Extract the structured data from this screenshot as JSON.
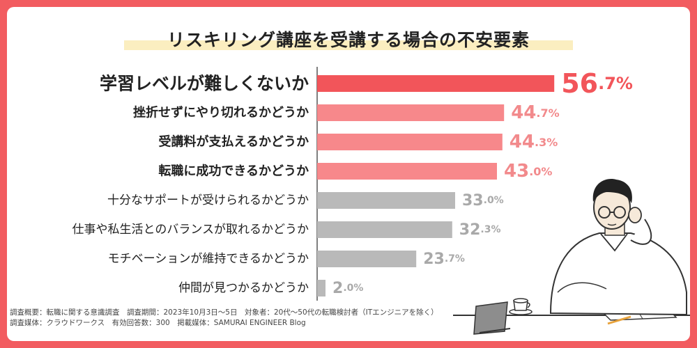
{
  "chart_data": {
    "type": "bar",
    "orientation": "horizontal",
    "title": "リスキリング講座を受講する場合の不安要素",
    "unit": "%",
    "xlim": [
      0,
      60
    ],
    "categories": [
      "学習レベルが難しくないか",
      "挫折せずにやり切れるかどうか",
      "受講料が支払えるかどうか",
      "転職に成功できるかどうか",
      "十分なサポートが受けられるかどうか",
      "仕事や私生活とのバランスが取れるかどうか",
      "モチベーションが維持できるかどうか",
      "仲間が見つかるかどうか"
    ],
    "values": [
      56.7,
      44.7,
      44.3,
      43.0,
      33.0,
      32.3,
      23.7,
      2.0
    ],
    "value_labels": [
      {
        "int": "56",
        "dec": ".7%"
      },
      {
        "int": "44",
        "dec": ".7%"
      },
      {
        "int": "44",
        "dec": ".3%"
      },
      {
        "int": "43",
        "dec": ".0%"
      },
      {
        "int": "33",
        "dec": ".0%"
      },
      {
        "int": "32",
        "dec": ".3%"
      },
      {
        "int": "23",
        "dec": ".7%"
      },
      {
        "int": "2",
        "dec": ".0%"
      }
    ],
    "tiers": [
      "top",
      "high",
      "high",
      "high",
      "low",
      "low",
      "low",
      "low"
    ],
    "colors": {
      "top": "#f2555a",
      "high": "#f7888b",
      "low": "#b9b9b9",
      "top_label": "#f2555a",
      "high_label": "#f28a8c",
      "low_label": "#a9a9a9"
    }
  },
  "footer": {
    "line1": "調査概要：転職に関する意識調査　調査期間：2023年10月3日〜5日　対象者：20代〜50代の転職検討者（ITエンジニアを除く）",
    "line2": "調査媒体：クラウドワークス　有効回答数：300　掲載媒体：SAMURAI ENGINEER Blog"
  },
  "colors": {
    "frame": "#f25c60",
    "title_highlight": "#fbeec0"
  }
}
